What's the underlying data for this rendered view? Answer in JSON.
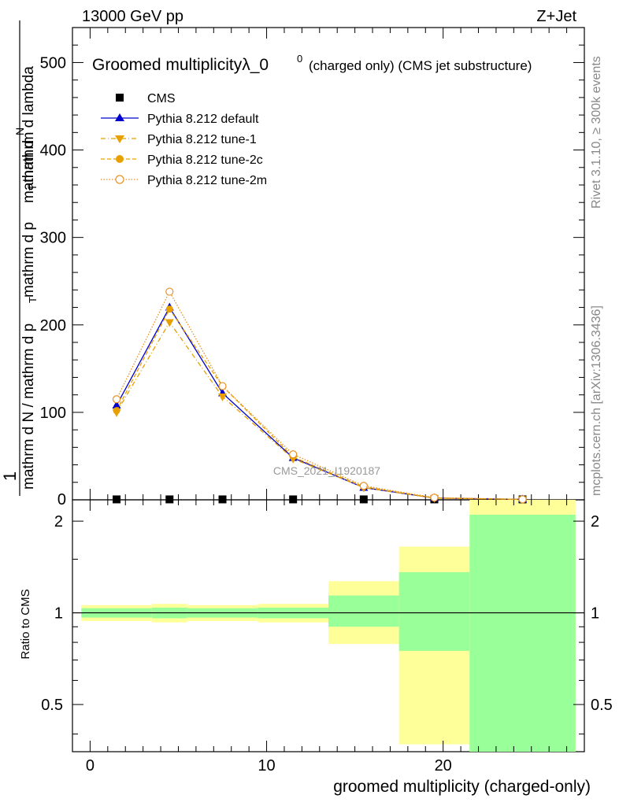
{
  "header": {
    "energy_label": "13000 GeV pp",
    "process_label": "Z+Jet"
  },
  "side_labels": {
    "rivet": "Rivet 3.1.10, ≥ 300k events",
    "mcplots": "mcplots.cern.ch [arXiv:1306.3436]"
  },
  "watermark": "CMS_2021_I1920187",
  "colors": {
    "cms": "#000000",
    "default": "#0000cc",
    "tune": "#e8a000",
    "tune_light": "#e89020",
    "band_yellow": "#ffff99",
    "band_green": "#99ff99"
  },
  "chart_data": [
    {
      "type": "line",
      "title_main": "Groomed multiplicityλ_0",
      "title_sup": "0",
      "title_suffix": "(charged only) (CMS jet substructure)",
      "ylabel_parts": [
        "1",
        "mathrm d N / mathrm d p",
        "T",
        "mathrm d p",
        "T",
        "mathrm d N",
        "mathrm d lambda"
      ],
      "ylabel_top": "mathrm d",
      "ylabel_N": "N",
      "ylabel_full": "1 / (mathrm d N / mathrm d p_T) · mathrm d²N / (mathrm d p_T mathrm d lambda)",
      "xlim": [
        -1,
        28
      ],
      "ylim": [
        0,
        540
      ],
      "yticks": [
        100,
        200,
        300,
        400,
        500
      ],
      "ytick_labels": [
        "100",
        "200",
        "300",
        "400",
        "500"
      ],
      "y_zero_label": "0",
      "x": [
        1.5,
        4.5,
        7.5,
        11.5,
        15.5,
        19.5,
        24.5
      ],
      "bin_edges": [
        -0.5,
        3.5,
        5.5,
        9.5,
        13.5,
        17.5,
        21.5,
        27.5
      ],
      "series": [
        {
          "name": "CMS",
          "key": "cms",
          "values": [
            0.5,
            0.5,
            0.5,
            0.5,
            0.5,
            0.5,
            0.5
          ]
        },
        {
          "name": "Pythia 8.212 default",
          "key": "default",
          "values": [
            108,
            220,
            122,
            48,
            14,
            2,
            0.5
          ]
        },
        {
          "name": "Pythia 8.212 tune-1",
          "key": "tune1",
          "values": [
            100,
            203,
            118,
            47,
            14,
            2,
            0.5
          ]
        },
        {
          "name": "Pythia 8.212 tune-2c",
          "key": "tune2c",
          "values": [
            102,
            218,
            130,
            49,
            15,
            2,
            0.5
          ]
        },
        {
          "name": "Pythia 8.212 tune-2m",
          "key": "tune2m",
          "values": [
            115,
            238,
            130,
            52,
            16,
            2.5,
            0.5
          ]
        }
      ]
    },
    {
      "type": "ratio",
      "ylabel": "Ratio to CMS",
      "xlabel": "groomed multiplicity (charged-only)",
      "xlim": [
        -1,
        28
      ],
      "ylim": [
        0.35,
        2.35
      ],
      "yticks": [
        0.5,
        1,
        2
      ],
      "ytick_labels": [
        "0.5",
        "1",
        "2"
      ],
      "xticks": [
        0,
        10,
        20
      ],
      "xtick_labels": [
        "0",
        "10",
        "20"
      ],
      "bins": [
        {
          "lo": -0.5,
          "hi": 3.5,
          "yellow": [
            0.94,
            1.06
          ],
          "green": [
            0.965,
            1.035
          ]
        },
        {
          "lo": 3.5,
          "hi": 5.5,
          "yellow": [
            0.93,
            1.07
          ],
          "green": [
            0.96,
            1.04
          ]
        },
        {
          "lo": 5.5,
          "hi": 9.5,
          "yellow": [
            0.94,
            1.06
          ],
          "green": [
            0.965,
            1.035
          ]
        },
        {
          "lo": 9.5,
          "hi": 13.5,
          "yellow": [
            0.93,
            1.07
          ],
          "green": [
            0.96,
            1.04
          ]
        },
        {
          "lo": 13.5,
          "hi": 17.5,
          "yellow": [
            0.79,
            1.27
          ],
          "green": [
            0.9,
            1.14
          ]
        },
        {
          "lo": 17.5,
          "hi": 21.5,
          "yellow": [
            0.37,
            1.65
          ],
          "green": [
            0.75,
            1.36
          ]
        },
        {
          "lo": 21.5,
          "hi": 27.5,
          "yellow": [
            0.35,
            2.35
          ],
          "green": [
            0.35,
            2.1
          ]
        }
      ]
    }
  ]
}
